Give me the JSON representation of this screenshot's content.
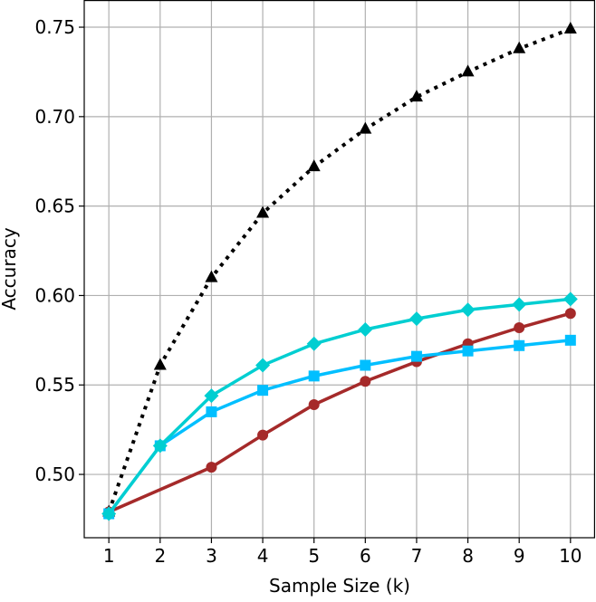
{
  "chart_data": {
    "type": "line",
    "title": "",
    "xlabel": "Sample Size (k)",
    "ylabel": "Accuracy",
    "x": [
      1,
      2,
      3,
      4,
      5,
      6,
      7,
      8,
      9,
      10
    ],
    "xlim": [
      0.52,
      10.48
    ],
    "ylim": [
      0.4646,
      0.7652
    ],
    "xticks": [
      1,
      2,
      3,
      4,
      5,
      6,
      7,
      8,
      9,
      10
    ],
    "yticks": [
      0.5,
      0.55,
      0.6,
      0.65,
      0.7,
      0.75
    ],
    "ytick_labels": [
      "0.50",
      "0.55",
      "0.60",
      "0.65",
      "0.70",
      "0.75"
    ],
    "grid": true,
    "legend": "none",
    "series": [
      {
        "name": "series-black-triangle",
        "color": "#000000",
        "marker": "triangle",
        "dash": "dotted",
        "values": [
          0.479,
          0.561,
          0.61,
          0.646,
          0.672,
          0.693,
          0.711,
          0.725,
          0.738,
          0.749
        ]
      },
      {
        "name": "series-red-circle",
        "color": "#a52a2a",
        "marker": "circle",
        "dash": "solid",
        "values": [
          0.479,
          null,
          0.504,
          0.522,
          0.539,
          0.552,
          0.563,
          0.573,
          0.582,
          0.59
        ]
      },
      {
        "name": "series-blue-square",
        "color": "#00bfff",
        "marker": "square",
        "dash": "solid",
        "values": [
          0.478,
          0.516,
          0.535,
          0.547,
          0.555,
          0.561,
          0.566,
          0.569,
          0.572,
          0.575
        ]
      },
      {
        "name": "series-turquoise-diamond",
        "color": "#00ced1",
        "marker": "diamond",
        "dash": "solid",
        "values": [
          0.478,
          0.516,
          0.544,
          0.561,
          0.573,
          0.581,
          0.587,
          0.592,
          0.595,
          0.598
        ]
      }
    ]
  }
}
